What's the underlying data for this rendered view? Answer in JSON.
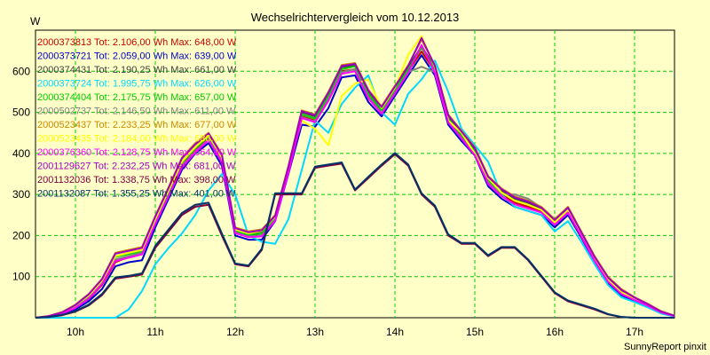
{
  "chart_data": {
    "type": "line",
    "title": "Wechselrichtervergleich vom 10.12.2013",
    "ylabel": "W",
    "xlabel": "",
    "footer": "SunnyReport pinxit",
    "x_range": [
      "09:30",
      "17:30"
    ],
    "ylim": [
      0,
      700
    ],
    "x_ticks": [
      "10h",
      "11h",
      "12h",
      "13h",
      "14h",
      "15h",
      "16h",
      "17h"
    ],
    "y_ticks": [
      "100",
      "200",
      "300",
      "400",
      "500",
      "600"
    ],
    "grid": true,
    "legend_position": "top-left",
    "x": [
      "09:30",
      "09:40",
      "09:50",
      "10:00",
      "10:10",
      "10:20",
      "10:30",
      "10:40",
      "10:50",
      "11:00",
      "11:10",
      "11:20",
      "11:30",
      "11:40",
      "11:50",
      "12:00",
      "12:10",
      "12:20",
      "12:30",
      "12:40",
      "12:50",
      "13:00",
      "13:10",
      "13:20",
      "13:30",
      "13:40",
      "13:50",
      "14:00",
      "14:10",
      "14:20",
      "14:30",
      "14:40",
      "14:50",
      "15:00",
      "15:10",
      "15:20",
      "15:30",
      "15:40",
      "15:50",
      "16:00",
      "16:10",
      "16:20",
      "16:30",
      "16:40",
      "16:50",
      "17:00",
      "17:10",
      "17:20",
      "17:30"
    ],
    "series": [
      {
        "name": "2000373813",
        "total": "Tot: 2.106,00 Wh",
        "max": "Max: 648,00 W",
        "color": "#cc0000",
        "values": [
          0,
          3,
          10,
          25,
          45,
          80,
          135,
          148,
          155,
          230,
          300,
          370,
          410,
          440,
          380,
          210,
          200,
          200,
          240,
          360,
          490,
          480,
          530,
          600,
          605,
          540,
          500,
          550,
          600,
          648,
          600,
          480,
          440,
          400,
          330,
          300,
          280,
          270,
          260,
          230,
          260,
          200,
          140,
          90,
          60,
          45,
          30,
          15,
          5
        ]
      },
      {
        "name": "2000373721",
        "total": "Tot: 2.059,00 Wh",
        "max": "Max: 639,00 W",
        "color": "#0000cc",
        "values": [
          0,
          2,
          8,
          20,
          40,
          70,
          125,
          135,
          140,
          220,
          290,
          360,
          400,
          425,
          370,
          200,
          190,
          190,
          235,
          350,
          470,
          465,
          510,
          585,
          590,
          525,
          490,
          540,
          590,
          639,
          590,
          470,
          430,
          395,
          320,
          290,
          270,
          260,
          250,
          220,
          250,
          195,
          135,
          85,
          55,
          40,
          28,
          12,
          4
        ]
      },
      {
        "name": "2000374431",
        "total": "Tot: 2.190,25 Wh",
        "max": "Max: 661,00 W",
        "color": "#404040",
        "values": [
          0,
          3,
          12,
          30,
          55,
          90,
          150,
          158,
          165,
          240,
          310,
          380,
          415,
          445,
          390,
          215,
          205,
          210,
          245,
          365,
          500,
          490,
          545,
          610,
          615,
          550,
          510,
          560,
          610,
          661,
          610,
          490,
          450,
          410,
          340,
          310,
          290,
          280,
          265,
          235,
          265,
          205,
          145,
          95,
          65,
          48,
          32,
          15,
          5
        ]
      },
      {
        "name": "2000373724",
        "total": "Tot: 1.995,75 Wh",
        "max": "Max: 626,00 W",
        "color": "#00d8ff",
        "values": [
          0,
          0,
          0,
          0,
          0,
          0,
          0,
          20,
          65,
          130,
          170,
          205,
          250,
          310,
          350,
          300,
          200,
          185,
          180,
          240,
          360,
          480,
          450,
          520,
          560,
          590,
          500,
          470,
          545,
          580,
          626,
          550,
          460,
          420,
          380,
          300,
          270,
          260,
          250,
          210,
          235,
          185,
          130,
          80,
          50,
          38,
          25,
          10,
          3
        ]
      },
      {
        "name": "2000374404",
        "total": "Tot: 2.175,75 Wh",
        "max": "Max: 657,00 W",
        "color": "#00cc00",
        "values": [
          0,
          3,
          11,
          28,
          52,
          88,
          148,
          155,
          162,
          238,
          305,
          378,
          412,
          442,
          388,
          212,
          202,
          205,
          242,
          362,
          495,
          485,
          540,
          605,
          612,
          545,
          505,
          555,
          605,
          657,
          605,
          485,
          445,
          405,
          335,
          305,
          285,
          275,
          262,
          232,
          262,
          202,
          142,
          92,
          62,
          46,
          30,
          14,
          5
        ]
      },
      {
        "name": "2000502737",
        "total": "Tot: 2.146,50 Wh",
        "max": "Max: 611,00 W",
        "color": "#808080",
        "values": [
          0,
          3,
          10,
          26,
          48,
          84,
          142,
          150,
          158,
          232,
          298,
          370,
          405,
          435,
          382,
          208,
          198,
          200,
          238,
          355,
          488,
          478,
          532,
          598,
          605,
          538,
          498,
          548,
          598,
          611,
          598,
          478,
          438,
          398,
          330,
          300,
          300,
          290,
          268,
          236,
          266,
          200,
          140,
          90,
          60,
          44,
          29,
          13,
          4
        ]
      },
      {
        "name": "2000523437",
        "total": "Tot: 2.233,25 Wh",
        "max": "Max: 677,00 W",
        "color": "#cc8800",
        "values": [
          0,
          4,
          14,
          32,
          58,
          95,
          158,
          165,
          172,
          248,
          318,
          390,
          425,
          450,
          398,
          220,
          210,
          215,
          250,
          370,
          505,
          495,
          550,
          615,
          620,
          555,
          515,
          565,
          615,
          677,
          615,
          495,
          455,
          415,
          345,
          315,
          295,
          285,
          270,
          240,
          270,
          210,
          150,
          100,
          70,
          50,
          34,
          16,
          5
        ]
      },
      {
        "name": "2000523435",
        "total": "Tot: 2.184,00 Wh",
        "max": "Max: 686,00 W",
        "color": "#ffff00",
        "values": [
          0,
          3,
          12,
          30,
          54,
          90,
          150,
          158,
          165,
          240,
          310,
          380,
          415,
          445,
          390,
          215,
          205,
          212,
          246,
          366,
          480,
          460,
          420,
          540,
          570,
          580,
          510,
          560,
          640,
          686,
          610,
          480,
          450,
          400,
          340,
          305,
          285,
          275,
          262,
          232,
          262,
          202,
          142,
          92,
          62,
          46,
          30,
          14,
          5
        ]
      },
      {
        "name": "2000376360",
        "total": "Tot: 2.128,75 Wh",
        "max": "Max: 664,00 W",
        "color": "#ff00ff",
        "values": [
          0,
          3,
          10,
          24,
          46,
          82,
          138,
          146,
          154,
          228,
          296,
          366,
          402,
          432,
          378,
          206,
          196,
          198,
          236,
          352,
          486,
          476,
          528,
          594,
          600,
          534,
          496,
          546,
          596,
          664,
          596,
          476,
          436,
          396,
          326,
          296,
          276,
          266,
          256,
          226,
          256,
          198,
          138,
          88,
          58,
          43,
          29,
          13,
          4
        ]
      },
      {
        "name": "2001129627",
        "total": "Tot: 2.232,25 Wh",
        "max": "Max: 681,00 W",
        "color": "#a000c0",
        "values": [
          0,
          4,
          13,
          31,
          57,
          94,
          156,
          163,
          170,
          246,
          316,
          388,
          422,
          448,
          396,
          218,
          208,
          213,
          248,
          368,
          503,
          493,
          548,
          613,
          618,
          553,
          513,
          563,
          613,
          681,
          613,
          493,
          453,
          413,
          343,
          313,
          293,
          283,
          268,
          238,
          268,
          208,
          148,
          98,
          68,
          49,
          33,
          15,
          5
        ]
      },
      {
        "name": "2001132036",
        "total": "Tot: 1.338,75 Wh",
        "max": "Max: 398,00 W",
        "color": "#800040",
        "values": [
          0,
          2,
          6,
          15,
          30,
          55,
          95,
          100,
          105,
          170,
          210,
          250,
          270,
          275,
          200,
          130,
          125,
          165,
          300,
          300,
          300,
          365,
          370,
          375,
          310,
          340,
          370,
          398,
          370,
          300,
          270,
          200,
          180,
          180,
          150,
          170,
          170,
          140,
          100,
          60,
          40,
          30,
          20,
          8,
          2,
          0,
          0,
          0,
          0
        ]
      },
      {
        "name": "2001132087",
        "total": "Tot: 1.355,25 Wh",
        "max": "Max: 401,00 W",
        "color": "#003366",
        "values": [
          0,
          2,
          7,
          16,
          32,
          58,
          98,
          102,
          108,
          175,
          215,
          255,
          275,
          280,
          205,
          132,
          127,
          168,
          303,
          303,
          303,
          368,
          373,
          378,
          312,
          343,
          373,
          401,
          373,
          303,
          273,
          203,
          182,
          182,
          152,
          172,
          172,
          142,
          102,
          62,
          42,
          32,
          22,
          9,
          2,
          0,
          0,
          0,
          0
        ]
      }
    ]
  }
}
